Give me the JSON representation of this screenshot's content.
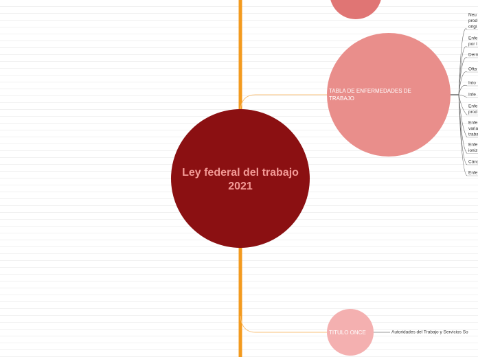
{
  "central": {
    "label": "Ley federal del trabajo 2021"
  },
  "branches": [
    {
      "label": "TABLA DE ENFERMEDADES DE TRABAJO",
      "leaves": [
        {
          "lines": [
            "Neu",
            "prod",
            "origi"
          ]
        },
        {
          "lines": [
            "Enfe",
            "por l"
          ]
        },
        {
          "lines": [
            "Derm"
          ]
        },
        {
          "lines": [
            "Ofta"
          ]
        },
        {
          "lines": [
            "Into"
          ]
        },
        {
          "lines": [
            "Infe"
          ]
        },
        {
          "lines": [
            "Enfe",
            "prod"
          ]
        },
        {
          "lines": [
            "Enfe",
            "varia",
            "traba"
          ]
        },
        {
          "lines": [
            "Enfe",
            "ioniz"
          ]
        },
        {
          "lines": [
            "Cánc"
          ]
        },
        {
          "lines": [
            "Enfe"
          ]
        }
      ]
    },
    {
      "label": "TITULO ONCE",
      "leaves": [
        {
          "lines": [
            "Autoridades del Trabajo y Servicios So"
          ]
        }
      ]
    }
  ]
}
